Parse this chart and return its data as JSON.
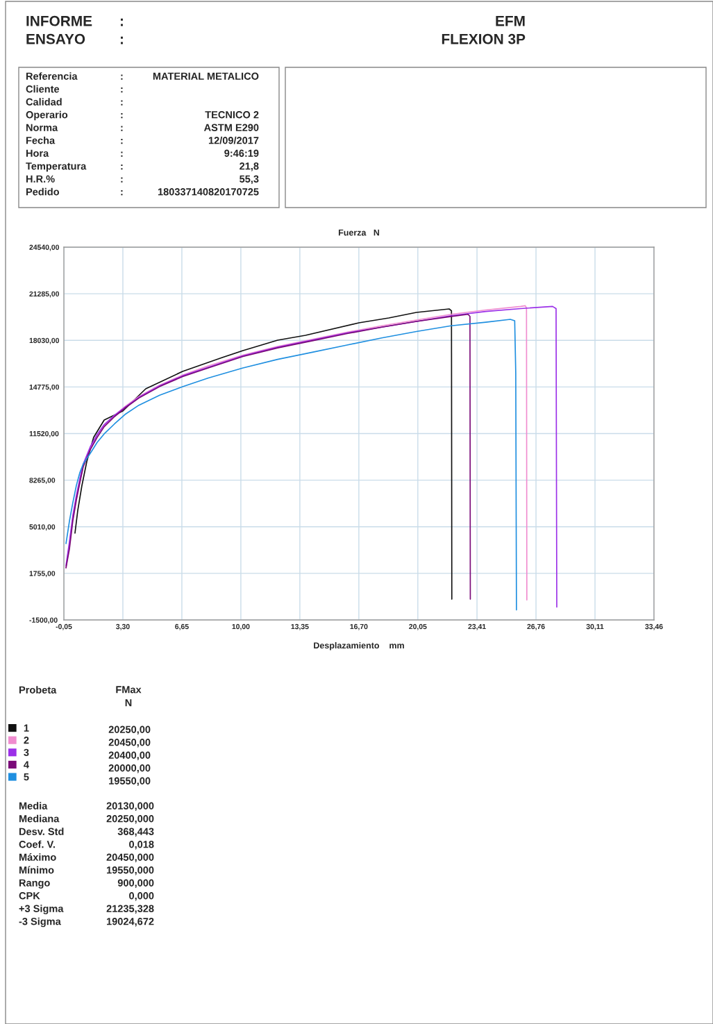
{
  "chart_data": {
    "type": "line",
    "title": "Fuerza   N",
    "xlabel": "Desplazamiento    mm",
    "xlim": [
      -0.05,
      33.46
    ],
    "xticks": [
      {
        "value": -0.05,
        "label": "-0,05"
      },
      {
        "value": 3.3,
        "label": "3,30"
      },
      {
        "value": 6.65,
        "label": "6,65"
      },
      {
        "value": 10.0,
        "label": "10,00"
      },
      {
        "value": 13.35,
        "label": "13,35"
      },
      {
        "value": 16.7,
        "label": "16,70"
      },
      {
        "value": 20.05,
        "label": "20,05"
      },
      {
        "value": 23.41,
        "label": "23,41"
      },
      {
        "value": 26.76,
        "label": "26,76"
      },
      {
        "value": 30.11,
        "label": "30,11"
      },
      {
        "value": 33.46,
        "label": "33,46"
      }
    ],
    "ylim": [
      -1500,
      24540
    ],
    "yticks": [
      {
        "value": -1500,
        "label": "-1500,00"
      },
      {
        "value": 1755,
        "label": "1755,00"
      },
      {
        "value": 5010,
        "label": "5010,00"
      },
      {
        "value": 8265,
        "label": "8265,00"
      },
      {
        "value": 11520,
        "label": "11520,00"
      },
      {
        "value": 14775,
        "label": "14775,00"
      },
      {
        "value": 18030,
        "label": "18030,00"
      },
      {
        "value": 21285,
        "label": "21285,00"
      },
      {
        "value": 24540,
        "label": "24540,00"
      }
    ],
    "grid": true,
    "legend": "bottom left",
    "marker": "none",
    "line_style": "solid",
    "series": [
      {
        "name": "1",
        "color": "#111111",
        "x": [
          0.58,
          0.74,
          0.97,
          1.25,
          1.64,
          2.24,
          3.3,
          4.6,
          6.69,
          8.94,
          10.12,
          12.09,
          13.67,
          16.7,
          18.4,
          19.97,
          21.83,
          21.96,
          21.98
        ],
        "values": [
          4561,
          6161,
          7859,
          9556,
          11253,
          12465,
          13095,
          14647,
          15859,
          16829,
          17314,
          18041,
          18381,
          19254,
          19593,
          19981,
          20224,
          20100,
          -50
        ]
      },
      {
        "name": "2",
        "color": "#f08ccf",
        "x": [
          0.07,
          0.27,
          0.46,
          0.66,
          0.86,
          1.05,
          1.45,
          1.84,
          2.24,
          2.83,
          3.42,
          4.21,
          5.39,
          6.69,
          8.15,
          10.12,
          12.09,
          14.06,
          16.03,
          18.0,
          19.97,
          21.94,
          23.91,
          25.89,
          26.15,
          26.22,
          26.24
        ],
        "values": [
          2137,
          3800,
          5600,
          7000,
          8200,
          9300,
          10500,
          11400,
          12100,
          12800,
          13400,
          14100,
          14900,
          15600,
          16250,
          17000,
          17600,
          18100,
          18600,
          19050,
          19450,
          19850,
          20150,
          20400,
          20450,
          20300,
          -100
        ]
      },
      {
        "name": "3",
        "color": "#9b30e8",
        "x": [
          0.07,
          0.27,
          0.46,
          0.66,
          0.86,
          1.05,
          1.45,
          1.84,
          2.24,
          2.83,
          3.42,
          4.21,
          5.39,
          6.69,
          8.15,
          10.12,
          12.09,
          14.06,
          16.03,
          18.0,
          19.97,
          21.94,
          23.91,
          25.89,
          27.7,
          27.9,
          27.94
        ],
        "values": [
          2300,
          4000,
          5800,
          7200,
          8400,
          9400,
          10600,
          11450,
          12150,
          12800,
          13350,
          14050,
          14850,
          15550,
          16150,
          16950,
          17550,
          18050,
          18550,
          18950,
          19350,
          19750,
          20050,
          20250,
          20400,
          20250,
          -600
        ]
      },
      {
        "name": "4",
        "color": "#7a0a78",
        "x": [
          0.07,
          0.27,
          0.46,
          0.66,
          0.86,
          1.05,
          1.45,
          1.84,
          2.24,
          2.83,
          3.42,
          4.21,
          5.39,
          6.69,
          8.15,
          10.12,
          12.09,
          14.06,
          16.03,
          18.0,
          19.97,
          21.94,
          22.9,
          23.01,
          23.03
        ],
        "values": [
          2137,
          3495,
          5434,
          6889,
          8100,
          9200,
          10400,
          11253,
          12000,
          12708,
          13300,
          14000,
          14800,
          15500,
          16100,
          16900,
          17500,
          18000,
          18500,
          18950,
          19350,
          19700,
          19850,
          19700,
          -50
        ]
      },
      {
        "name": "5",
        "color": "#1f8fe0",
        "x": [
          0.07,
          0.27,
          0.46,
          0.66,
          0.86,
          1.05,
          1.45,
          1.84,
          2.24,
          2.83,
          3.42,
          4.21,
          5.39,
          6.69,
          8.15,
          10.12,
          12.09,
          14.06,
          16.03,
          18.0,
          19.97,
          21.94,
          23.91,
          25.3,
          25.55,
          25.61,
          25.65
        ],
        "values": [
          3833,
          5434,
          6700,
          7900,
          8800,
          9400,
          10138,
          10900,
          11500,
          12200,
          12853,
          13500,
          14200,
          14793,
          15400,
          16102,
          16700,
          17200,
          17700,
          18200,
          18650,
          19050,
          19300,
          19496,
          19400,
          15762,
          -800
        ]
      }
    ],
    "annotations": [
      "INFORME\t:",
      "ENSAYO\t:",
      "EFM",
      "FLEXION 3P",
      "Referencia\t:\tMATERIAL METALICO",
      "Cliente\t:\t",
      "Calidad\t:\t",
      "Operario\t:\tTECNICO 2",
      "Norma\t:\tASTM E290",
      "Fecha\t:\t12/09/2017",
      "Hora\t:\t9:46:19",
      "Temperatura\t:\t21,8",
      "H.R.%\t:\t55,3",
      "Pedido\t:\t180337140820170725",
      "Probeta\tFMax\nN",
      "20250,00",
      "20450,00",
      "20400,00",
      "20000,00",
      "19550,00",
      "Media\t20130,000",
      "Mediana\t20250,000",
      "Desv. Std\t368,443",
      "Coef. V.\t0,018",
      "Máximo\t20450,000",
      "Mínimo\t19550,000",
      "Rango\t900,000",
      "CPK\t0,000",
      "+3 Sigma\t21235,328",
      "-3 Sigma\t19024,672"
    ]
  }
}
